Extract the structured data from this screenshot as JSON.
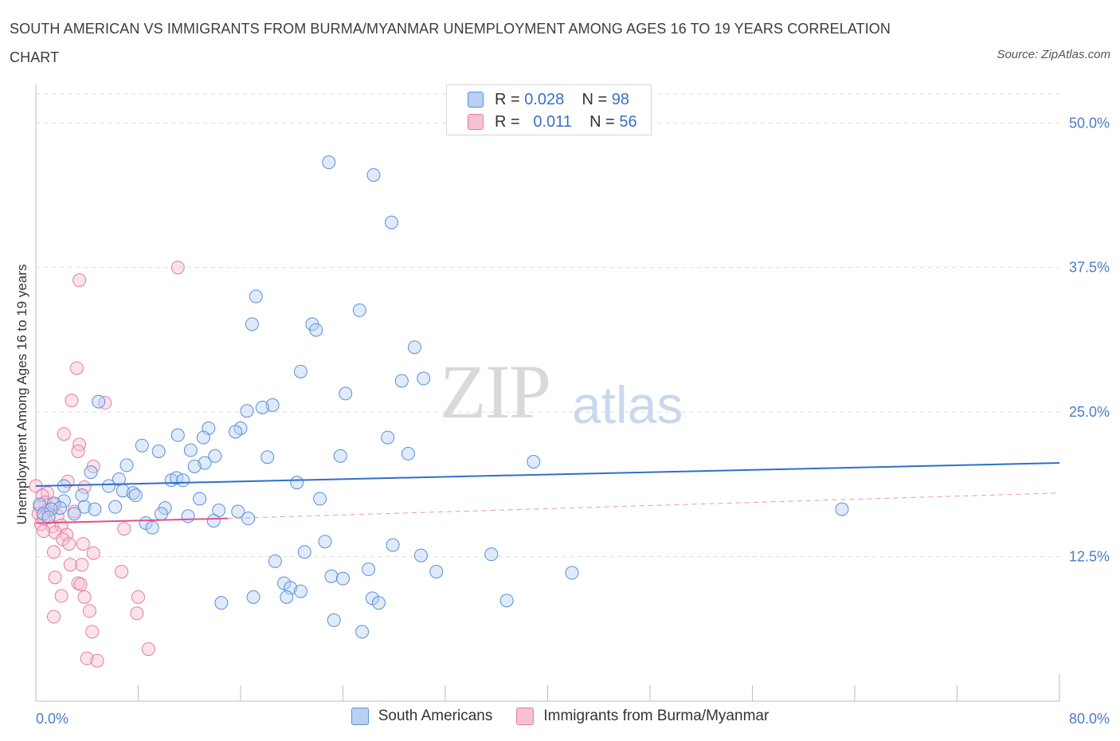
{
  "title": "SOUTH AMERICAN VS IMMIGRANTS FROM BURMA/MYANMAR UNEMPLOYMENT AMONG AGES 16 TO 19 YEARS CORRELATION CHART",
  "source": "Source: ZipAtlas.com",
  "watermark": {
    "zip": "ZIP",
    "atlas": "atlas"
  },
  "legend_top": [
    {
      "r_label": "R =",
      "r_value": "0.028",
      "n_label": "N =",
      "n_value": "98"
    },
    {
      "r_label": "R =",
      "r_value": "0.011",
      "n_label": "N =",
      "n_value": "56"
    }
  ],
  "legend_bottom": [
    "South Americans",
    "Immigrants from Burma/Myanmar"
  ],
  "colors": {
    "blue_fill": "#b8d0f4",
    "blue_stroke": "#5a8fd8",
    "blue_line": "#2e6fcc",
    "pink_fill": "#f6c2d3",
    "pink_stroke": "#e57ca0",
    "pink_line": "#e0508a",
    "tick_text": "#4a7cc9",
    "grid": "#dcdcdc"
  },
  "chart_data": {
    "type": "scatter",
    "title": "SOUTH AMERICAN VS IMMIGRANTS FROM BURMA/MYANMAR UNEMPLOYMENT AMONG AGES 16 TO 19 YEARS CORRELATION CHART",
    "xlabel": "",
    "ylabel": "Unemployment Among Ages 16 to 19 years",
    "xlim": [
      0,
      80
    ],
    "ylim": [
      0,
      52.5
    ],
    "x_tick_labels": {
      "min": "0.0%",
      "max": "80.0%"
    },
    "y_ticks": [
      12.5,
      25.0,
      37.5,
      50.0
    ],
    "y_tick_labels": [
      "12.5%",
      "25.0%",
      "37.5%",
      "50.0%"
    ],
    "grid": true,
    "series": [
      {
        "name": "South Americans",
        "color": "#5a8fd8",
        "trend": {
          "x": [
            0,
            80
          ],
          "y": [
            18.6,
            20.6
          ]
        },
        "points": [
          [
            22.9,
            46.6
          ],
          [
            26.4,
            45.5
          ],
          [
            27.8,
            41.4
          ],
          [
            17.2,
            35.0
          ],
          [
            25.3,
            33.8
          ],
          [
            16.9,
            32.6
          ],
          [
            21.6,
            32.6
          ],
          [
            21.9,
            32.1
          ],
          [
            29.6,
            30.6
          ],
          [
            20.7,
            28.5
          ],
          [
            28.6,
            27.7
          ],
          [
            30.3,
            27.9
          ],
          [
            24.2,
            26.6
          ],
          [
            4.9,
            25.9
          ],
          [
            18.5,
            25.6
          ],
          [
            17.7,
            25.4
          ],
          [
            16.5,
            25.1
          ],
          [
            13.5,
            23.6
          ],
          [
            16.0,
            23.6
          ],
          [
            15.6,
            23.3
          ],
          [
            11.1,
            23.0
          ],
          [
            13.1,
            22.8
          ],
          [
            27.5,
            22.8
          ],
          [
            8.3,
            22.1
          ],
          [
            12.1,
            21.7
          ],
          [
            9.6,
            21.6
          ],
          [
            14.0,
            21.2
          ],
          [
            18.1,
            21.1
          ],
          [
            23.8,
            21.2
          ],
          [
            29.1,
            21.4
          ],
          [
            38.9,
            20.7
          ],
          [
            13.2,
            20.6
          ],
          [
            7.1,
            20.4
          ],
          [
            12.4,
            20.3
          ],
          [
            4.3,
            19.8
          ],
          [
            6.5,
            19.2
          ],
          [
            10.6,
            19.1
          ],
          [
            11.0,
            19.3
          ],
          [
            11.5,
            19.1
          ],
          [
            20.4,
            18.9
          ],
          [
            5.7,
            18.6
          ],
          [
            2.2,
            18.6
          ],
          [
            3.6,
            17.8
          ],
          [
            6.8,
            18.2
          ],
          [
            7.6,
            18.0
          ],
          [
            7.8,
            17.8
          ],
          [
            12.8,
            17.5
          ],
          [
            22.2,
            17.5
          ],
          [
            2.2,
            17.3
          ],
          [
            1.4,
            17.1
          ],
          [
            0.3,
            17.0
          ],
          [
            1.9,
            16.7
          ],
          [
            3.8,
            16.8
          ],
          [
            6.2,
            16.8
          ],
          [
            4.6,
            16.6
          ],
          [
            1.2,
            16.6
          ],
          [
            10.1,
            16.7
          ],
          [
            63.0,
            16.6
          ],
          [
            14.3,
            16.5
          ],
          [
            15.8,
            16.4
          ],
          [
            0.6,
            16.2
          ],
          [
            3.0,
            16.2
          ],
          [
            1.0,
            15.9
          ],
          [
            9.8,
            16.2
          ],
          [
            11.9,
            16.0
          ],
          [
            16.6,
            15.8
          ],
          [
            8.6,
            15.4
          ],
          [
            9.1,
            15.0
          ],
          [
            13.9,
            15.6
          ],
          [
            22.6,
            13.8
          ],
          [
            27.9,
            13.5
          ],
          [
            21.0,
            12.9
          ],
          [
            30.1,
            12.6
          ],
          [
            35.6,
            12.7
          ],
          [
            18.7,
            12.1
          ],
          [
            26.0,
            11.4
          ],
          [
            31.3,
            11.2
          ],
          [
            41.9,
            11.1
          ],
          [
            23.1,
            10.8
          ],
          [
            24.0,
            10.6
          ],
          [
            19.4,
            10.2
          ],
          [
            19.9,
            9.8
          ],
          [
            20.7,
            9.5
          ],
          [
            19.6,
            9.0
          ],
          [
            17.0,
            9.0
          ],
          [
            26.3,
            8.9
          ],
          [
            26.8,
            8.5
          ],
          [
            36.8,
            8.7
          ],
          [
            14.5,
            8.5
          ],
          [
            23.3,
            7.0
          ],
          [
            25.5,
            6.0
          ]
        ]
      },
      {
        "name": "Immigrants from Burma/Myanmar",
        "color": "#e57ca0",
        "trend": {
          "x": [
            0,
            15
          ],
          "y": [
            15.4,
            15.8
          ]
        },
        "trend_extension": {
          "x": [
            15,
            80
          ],
          "y": [
            15.8,
            18.0
          ]
        },
        "points": [
          [
            11.1,
            37.5
          ],
          [
            3.4,
            36.4
          ],
          [
            3.2,
            28.8
          ],
          [
            2.8,
            26.0
          ],
          [
            5.4,
            25.8
          ],
          [
            2.2,
            23.1
          ],
          [
            3.4,
            22.2
          ],
          [
            3.3,
            21.6
          ],
          [
            4.5,
            20.3
          ],
          [
            2.5,
            19.0
          ],
          [
            0.0,
            18.6
          ],
          [
            3.8,
            18.5
          ],
          [
            0.9,
            18.0
          ],
          [
            0.5,
            17.8
          ],
          [
            0.7,
            17.2
          ],
          [
            1.5,
            17.0
          ],
          [
            0.3,
            16.8
          ],
          [
            0.9,
            16.5
          ],
          [
            0.2,
            16.2
          ],
          [
            1.7,
            16.0
          ],
          [
            3.0,
            16.4
          ],
          [
            0.6,
            15.8
          ],
          [
            0.4,
            15.3
          ],
          [
            1.3,
            15.1
          ],
          [
            2.0,
            15.2
          ],
          [
            6.9,
            14.9
          ],
          [
            1.5,
            14.6
          ],
          [
            2.4,
            14.4
          ],
          [
            2.1,
            14.0
          ],
          [
            0.6,
            14.7
          ],
          [
            2.6,
            13.6
          ],
          [
            3.7,
            13.6
          ],
          [
            1.4,
            12.9
          ],
          [
            4.5,
            12.8
          ],
          [
            2.7,
            11.8
          ],
          [
            3.6,
            11.8
          ],
          [
            6.7,
            11.2
          ],
          [
            1.5,
            10.7
          ],
          [
            3.3,
            10.2
          ],
          [
            3.5,
            10.1
          ],
          [
            2.0,
            9.1
          ],
          [
            3.8,
            9.0
          ],
          [
            8.0,
            9.0
          ],
          [
            1.4,
            7.3
          ],
          [
            4.2,
            7.8
          ],
          [
            7.9,
            7.6
          ],
          [
            4.4,
            6.0
          ],
          [
            8.8,
            4.5
          ],
          [
            4.0,
            3.7
          ],
          [
            4.8,
            3.5
          ]
        ]
      }
    ]
  }
}
